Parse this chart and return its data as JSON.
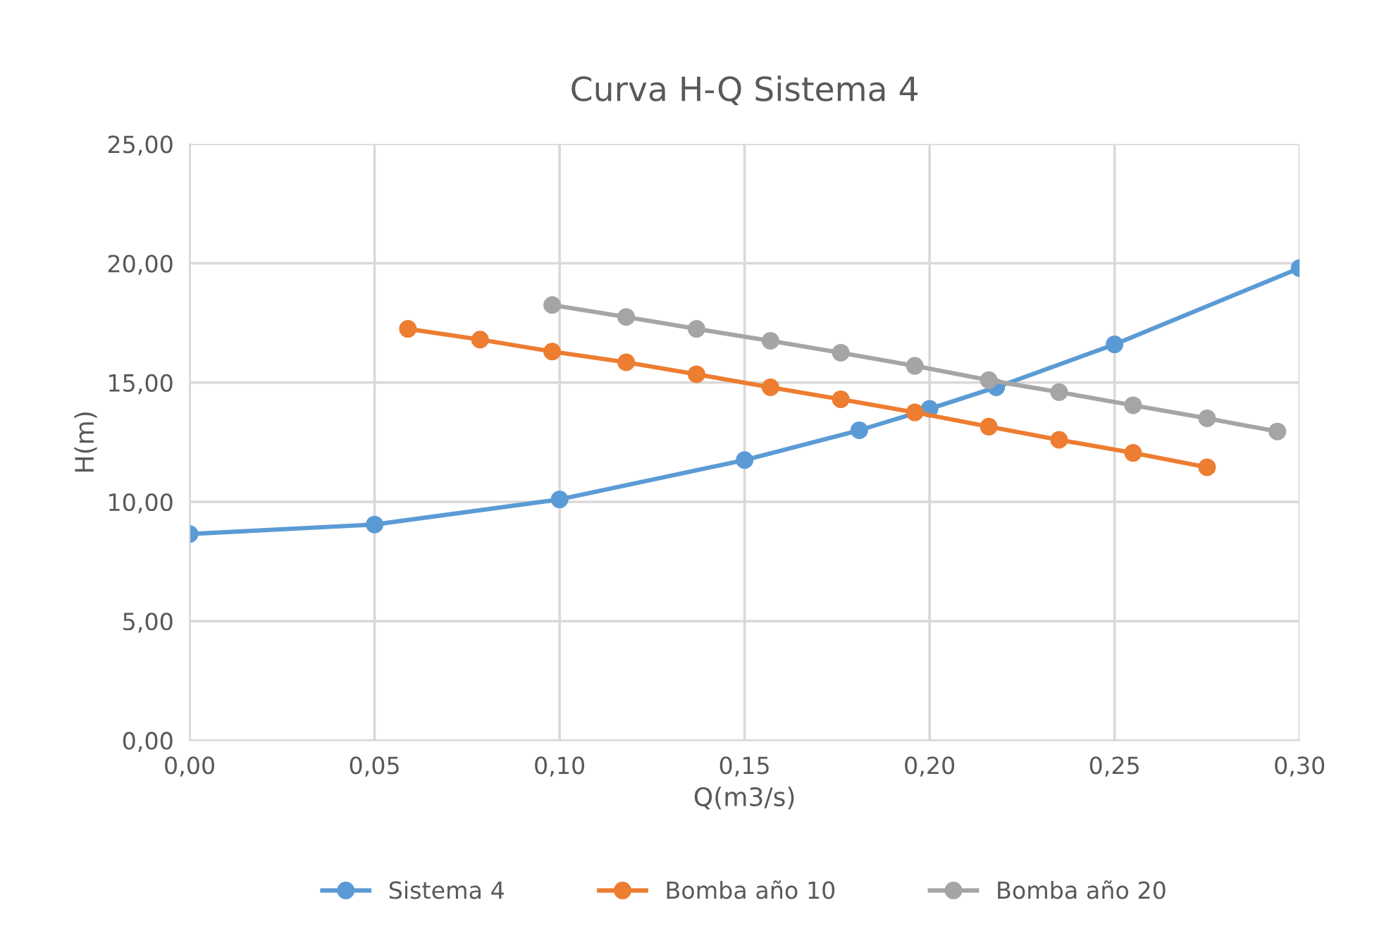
{
  "chart_data": {
    "type": "line",
    "title": "Curva H-Q Sistema 4",
    "xlabel": "Q(m3/s)",
    "ylabel": "H(m)",
    "xlim": [
      0,
      0.3
    ],
    "ylim": [
      0,
      25
    ],
    "xticks": [
      {
        "value": 0,
        "label": "0,00"
      },
      {
        "value": 0.05,
        "label": "0,05"
      },
      {
        "value": 0.1,
        "label": "0,10"
      },
      {
        "value": 0.15,
        "label": "0,15"
      },
      {
        "value": 0.2,
        "label": "0,20"
      },
      {
        "value": 0.25,
        "label": "0,25"
      },
      {
        "value": 0.3,
        "label": "0,30"
      }
    ],
    "yticks": [
      {
        "value": 0,
        "label": "0,00"
      },
      {
        "value": 5,
        "label": "5,00"
      },
      {
        "value": 10,
        "label": "10,00"
      },
      {
        "value": 15,
        "label": "15,00"
      },
      {
        "value": 20,
        "label": "20,00"
      },
      {
        "value": 25,
        "label": "25,00"
      }
    ],
    "grid": true,
    "legend": "bottom",
    "marker": "circle",
    "line_style": "solid",
    "series": [
      {
        "name": "Sistema 4",
        "color": "#5b9bd5",
        "x": [
          0,
          0.05,
          0.1,
          0.15,
          0.181,
          0.2,
          0.218,
          0.25,
          0.3
        ],
        "values": [
          8.65,
          9.05,
          10.1,
          11.75,
          13.0,
          13.9,
          14.8,
          16.6,
          19.8
        ]
      },
      {
        "name": "Bomba año 10",
        "color": "#ed7d31",
        "x": [
          0.059,
          0.0785,
          0.098,
          0.118,
          0.137,
          0.157,
          0.176,
          0.196,
          0.216,
          0.235,
          0.255,
          0.275
        ],
        "values": [
          17.25,
          16.8,
          16.3,
          15.85,
          15.35,
          14.8,
          14.3,
          13.75,
          13.15,
          12.6,
          12.05,
          11.45
        ]
      },
      {
        "name": "Bomba año 20",
        "color": "#a5a5a5",
        "x": [
          0.098,
          0.118,
          0.137,
          0.157,
          0.176,
          0.196,
          0.216,
          0.235,
          0.255,
          0.275,
          0.294
        ],
        "values": [
          18.25,
          17.75,
          17.25,
          16.75,
          16.25,
          15.7,
          15.1,
          14.6,
          14.05,
          13.5,
          12.95
        ]
      }
    ]
  }
}
